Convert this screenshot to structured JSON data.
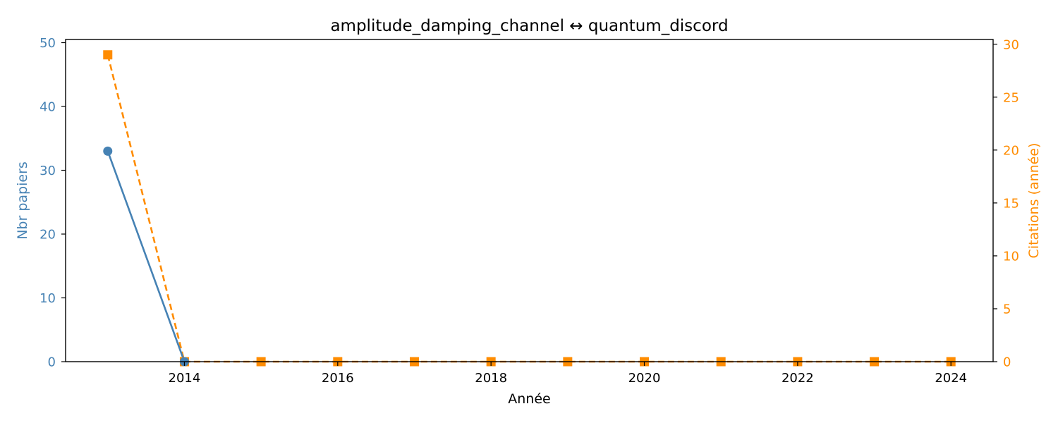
{
  "chart_data": {
    "type": "line",
    "title": "amplitude_damping_channel  ↔  quantum_discord",
    "xlabel": "Année",
    "x": [
      2013,
      2014,
      2015,
      2016,
      2017,
      2018,
      2019,
      2020,
      2021,
      2022,
      2023,
      2024
    ],
    "xticks": [
      2014,
      2016,
      2018,
      2020,
      2022,
      2024
    ],
    "xlim": [
      2012.45,
      2024.55
    ],
    "y_left": {
      "label": "Nbr papiers",
      "ylim": [
        0,
        50.5
      ],
      "ticks": [
        0,
        10,
        20,
        30,
        40,
        50
      ],
      "color": "#4682b4"
    },
    "y_right": {
      "label": "Citations (année)",
      "ylim": [
        0,
        30.45
      ],
      "ticks": [
        0,
        5,
        10,
        15,
        20,
        25,
        30
      ],
      "color": "#ff8c00"
    },
    "series": [
      {
        "axis": "left",
        "values": [
          33,
          0,
          null,
          null,
          null,
          null,
          null,
          null,
          null,
          null,
          null,
          null
        ],
        "color": "#4682b4",
        "marker": "circle",
        "linestyle": "solid"
      },
      {
        "axis": "right",
        "values": [
          29,
          0,
          0,
          0,
          0,
          0,
          0,
          0,
          0,
          0,
          0,
          0
        ],
        "color": "#ff8c00",
        "marker": "square",
        "linestyle": "dashed"
      }
    ],
    "grid": false,
    "legend": "none"
  }
}
